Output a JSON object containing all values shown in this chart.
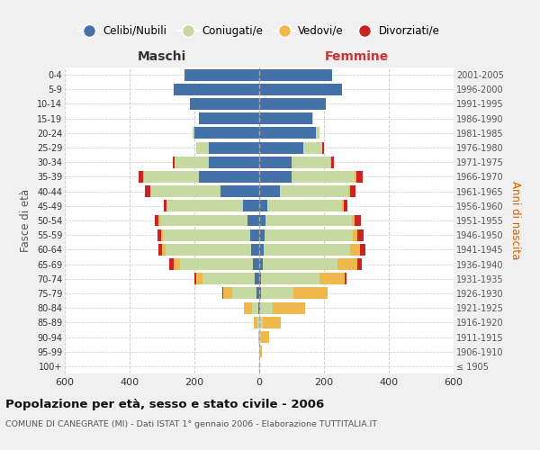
{
  "age_groups": [
    "100+",
    "95-99",
    "90-94",
    "85-89",
    "80-84",
    "75-79",
    "70-74",
    "65-69",
    "60-64",
    "55-59",
    "50-54",
    "45-49",
    "40-44",
    "35-39",
    "30-34",
    "25-29",
    "20-24",
    "15-19",
    "10-14",
    "5-9",
    "0-4"
  ],
  "birth_years": [
    "≤ 1905",
    "1906-1910",
    "1911-1915",
    "1916-1920",
    "1921-1925",
    "1926-1930",
    "1931-1935",
    "1936-1940",
    "1941-1945",
    "1946-1950",
    "1951-1955",
    "1956-1960",
    "1961-1965",
    "1966-1970",
    "1971-1975",
    "1976-1980",
    "1981-1985",
    "1986-1990",
    "1991-1995",
    "1996-2000",
    "2001-2005"
  ],
  "colors": {
    "celibe": "#4472a8",
    "coniugato": "#c5d9a0",
    "vedovo": "#f0b84a",
    "divorziato": "#cc2222"
  },
  "males": {
    "celibe": [
      0,
      0,
      0,
      1,
      2,
      8,
      15,
      20,
      25,
      28,
      35,
      50,
      120,
      185,
      155,
      155,
      200,
      185,
      215,
      265,
      230
    ],
    "coniugato": [
      0,
      0,
      2,
      5,
      20,
      75,
      160,
      225,
      265,
      270,
      270,
      235,
      215,
      170,
      105,
      40,
      5,
      2,
      0,
      0,
      0
    ],
    "vedovo": [
      0,
      0,
      2,
      10,
      25,
      28,
      20,
      18,
      10,
      5,
      5,
      0,
      0,
      2,
      2,
      0,
      0,
      0,
      0,
      0,
      0
    ],
    "divorziato": [
      0,
      0,
      0,
      0,
      0,
      2,
      5,
      15,
      12,
      12,
      12,
      10,
      18,
      15,
      5,
      0,
      0,
      0,
      0,
      0,
      0
    ]
  },
  "females": {
    "nubile": [
      0,
      0,
      0,
      0,
      2,
      5,
      5,
      12,
      15,
      18,
      20,
      25,
      65,
      100,
      100,
      135,
      175,
      165,
      205,
      255,
      225
    ],
    "coniugata": [
      0,
      2,
      5,
      12,
      40,
      100,
      180,
      230,
      265,
      270,
      265,
      230,
      210,
      195,
      120,
      60,
      10,
      2,
      0,
      0,
      0
    ],
    "vedova": [
      0,
      5,
      25,
      55,
      100,
      105,
      80,
      60,
      30,
      15,
      10,
      5,
      5,
      5,
      2,
      0,
      0,
      0,
      0,
      0,
      0
    ],
    "divorziata": [
      0,
      0,
      0,
      0,
      0,
      2,
      5,
      15,
      18,
      18,
      18,
      12,
      18,
      20,
      8,
      5,
      0,
      0,
      0,
      0,
      0
    ]
  },
  "title": "Popolazione per età, sesso e stato civile - 2006",
  "subtitle": "COMUNE DI CANEGRATE (MI) - Dati ISTAT 1° gennaio 2006 - Elaborazione TUTTITALIA.IT",
  "ylabel_left": "Fasce di età",
  "ylabel_right": "Anni di nascita",
  "xlabel_left": "Maschi",
  "xlabel_right": "Femmine",
  "xlim": 600,
  "legend_labels": [
    "Celibi/Nubili",
    "Coniugati/e",
    "Vedovi/e",
    "Divorziati/e"
  ],
  "background_color": "#f0f0f0",
  "plot_bg": "#ffffff",
  "grid_color": "#cccccc"
}
